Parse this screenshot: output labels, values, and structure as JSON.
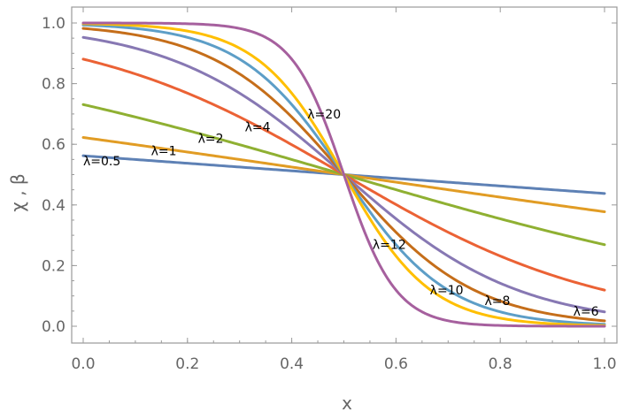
{
  "chart_data": {
    "type": "line",
    "title": "",
    "xlabel": "x",
    "ylabel": "χ , β",
    "xlim": [
      0,
      1
    ],
    "ylim": [
      0,
      1.03
    ],
    "x_ticks": [
      0.0,
      0.2,
      0.4,
      0.6,
      0.8,
      1.0
    ],
    "x_tick_labels": [
      "0.0",
      "0.2",
      "0.4",
      "0.6",
      "0.8",
      "1.0"
    ],
    "y_ticks": [
      0.0,
      0.2,
      0.4,
      0.6,
      0.8,
      1.0
    ],
    "y_tick_labels": [
      "0.0",
      "0.2",
      "0.4",
      "0.6",
      "0.8",
      "1.0"
    ],
    "grid": false,
    "x": [
      0.0,
      0.1,
      0.2,
      0.3,
      0.4,
      0.45,
      0.5,
      0.55,
      0.6,
      0.7,
      0.8,
      0.9,
      1.0
    ],
    "series": [
      {
        "lambda": 0.5,
        "label": "λ=0.5",
        "label_x": 0.0,
        "label_y": 0.545,
        "color": "#5e81b5",
        "values": [
          0.562,
          0.55,
          0.537,
          0.525,
          0.512,
          0.506,
          0.5,
          0.494,
          0.488,
          0.475,
          0.463,
          0.45,
          0.438
        ]
      },
      {
        "lambda": 1,
        "label": "λ=1",
        "label_x": 0.13,
        "label_y": 0.578,
        "color": "#e19c24",
        "values": [
          0.622,
          0.599,
          0.574,
          0.55,
          0.525,
          0.512,
          0.5,
          0.488,
          0.475,
          0.45,
          0.426,
          0.401,
          0.378
        ]
      },
      {
        "lambda": 2,
        "label": "λ=2",
        "label_x": 0.22,
        "label_y": 0.62,
        "color": "#8fb032",
        "values": [
          0.731,
          0.69,
          0.646,
          0.599,
          0.55,
          0.525,
          0.5,
          0.475,
          0.45,
          0.401,
          0.354,
          0.31,
          0.269
        ]
      },
      {
        "lambda": 4,
        "label": "λ=4",
        "label_x": 0.31,
        "label_y": 0.658,
        "color": "#eb6235",
        "values": [
          0.881,
          0.832,
          0.769,
          0.69,
          0.599,
          0.55,
          0.5,
          0.45,
          0.401,
          0.31,
          0.231,
          0.168,
          0.119
        ]
      },
      {
        "lambda": 6,
        "label": "λ=6",
        "label_x": 0.94,
        "label_y": 0.05,
        "color": "#8778b3",
        "values": [
          0.953,
          0.917,
          0.858,
          0.769,
          0.646,
          0.574,
          0.5,
          0.426,
          0.354,
          0.231,
          0.142,
          0.083,
          0.047
        ]
      },
      {
        "lambda": 8,
        "label": "λ=8",
        "label_x": 0.77,
        "label_y": 0.085,
        "color": "#c56e1a",
        "values": [
          0.982,
          0.961,
          0.917,
          0.832,
          0.69,
          0.599,
          0.5,
          0.401,
          0.31,
          0.168,
          0.083,
          0.039,
          0.018
        ]
      },
      {
        "lambda": 10,
        "label": "λ=10",
        "label_x": 0.665,
        "label_y": 0.12,
        "color": "#5d9ec7",
        "values": [
          0.993,
          0.982,
          0.953,
          0.881,
          0.731,
          0.622,
          0.5,
          0.378,
          0.269,
          0.119,
          0.047,
          0.018,
          0.007
        ]
      },
      {
        "lambda": 12,
        "label": "λ=12",
        "label_x": 0.555,
        "label_y": 0.27,
        "color": "#ffbf00",
        "values": [
          0.998,
          0.992,
          0.971,
          0.917,
          0.769,
          0.646,
          0.5,
          0.354,
          0.231,
          0.083,
          0.029,
          0.008,
          0.002
        ]
      },
      {
        "lambda": 20,
        "label": "λ=20",
        "label_x": 0.43,
        "label_y": 0.7,
        "color": "#a6609e",
        "values": [
          1.0,
          1.0,
          0.998,
          0.982,
          0.881,
          0.731,
          0.5,
          0.269,
          0.119,
          0.018,
          0.002,
          0.0,
          0.0
        ]
      }
    ]
  }
}
